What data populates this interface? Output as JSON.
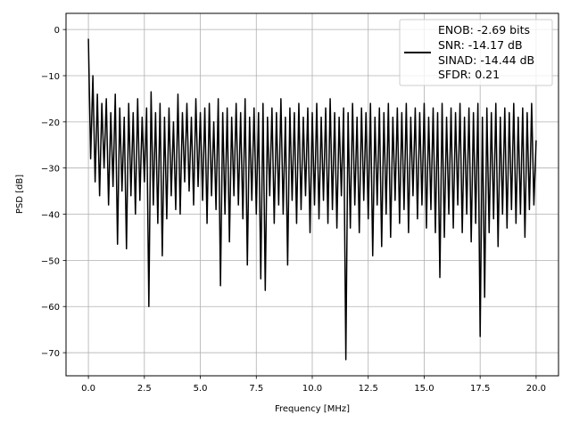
{
  "chart_data": {
    "type": "line",
    "title": "",
    "xlabel": "Frequency [MHz]",
    "ylabel": "PSD [dB]",
    "xlim": [
      -1.0,
      21.0
    ],
    "ylim": [
      -75.0,
      3.5
    ],
    "grid": true,
    "legend_placement": "top-right",
    "x_ticks": [
      0.0,
      2.5,
      5.0,
      7.5,
      10.0,
      12.5,
      15.0,
      17.5,
      20.0
    ],
    "x_tick_labels": [
      "0.0",
      "2.5",
      "5.0",
      "7.5",
      "10.0",
      "12.5",
      "15.0",
      "17.5",
      "20.0"
    ],
    "y_ticks": [
      0,
      -10,
      -20,
      -30,
      -40,
      -50,
      -60,
      -70
    ],
    "y_tick_labels": [
      "0",
      "−10",
      "−20",
      "−30",
      "−40",
      "−50",
      "−60",
      "−70"
    ],
    "series": [
      {
        "name": "PSD",
        "color": "#000000",
        "x_start": 0.0,
        "x_step": 0.1,
        "y": [
          -2,
          -28,
          -10,
          -33,
          -14,
          -36,
          -16,
          -30,
          -15,
          -38,
          -18,
          -34,
          -14,
          -46.5,
          -17,
          -35,
          -19,
          -47.5,
          -16,
          -36,
          -18,
          -40,
          -15,
          -37,
          -19,
          -33,
          -17,
          -60,
          -13.5,
          -38,
          -18,
          -42,
          -16,
          -49,
          -19,
          -41,
          -17,
          -36,
          -20,
          -39,
          -14,
          -40,
          -18,
          -33,
          -16,
          -35,
          -19,
          -38,
          -15,
          -34,
          -18,
          -37,
          -17,
          -42,
          -16,
          -36,
          -20,
          -39,
          -15,
          -55.5,
          -18,
          -40,
          -17,
          -46,
          -19,
          -36,
          -16,
          -38,
          -18,
          -41,
          -15,
          -51,
          -19,
          -37,
          -17,
          -40,
          -18,
          -54,
          -16,
          -56.5,
          -19,
          -36,
          -17,
          -42,
          -18,
          -38,
          -15,
          -40,
          -19,
          -51,
          -17,
          -37,
          -18,
          -42,
          -16,
          -39,
          -19,
          -36,
          -17,
          -44,
          -18,
          -38,
          -16,
          -41,
          -19,
          -37,
          -17,
          -42,
          -15,
          -39,
          -18,
          -43,
          -19,
          -36,
          -17,
          -71.5,
          -18,
          -43,
          -16,
          -38,
          -19,
          -44,
          -17,
          -37,
          -18,
          -41,
          -16,
          -49,
          -19,
          -38,
          -17,
          -47,
          -18,
          -40,
          -16,
          -45,
          -19,
          -37,
          -17,
          -42,
          -18,
          -39,
          -16,
          -44,
          -19,
          -36,
          -17,
          -41,
          -18,
          -38,
          -16,
          -43,
          -19,
          -39,
          -17,
          -44,
          -18,
          -53.7,
          -16,
          -45,
          -19,
          -40,
          -17,
          -43,
          -18,
          -38,
          -16,
          -44,
          -19,
          -40,
          -17,
          -46,
          -18,
          -42,
          -16,
          -66.5,
          -19,
          -58,
          -17,
          -44,
          -18,
          -41,
          -16,
          -47,
          -19,
          -40,
          -17,
          -43,
          -18,
          -39,
          -16,
          -42,
          -19,
          -40,
          -17,
          -45,
          -18,
          -39,
          -16,
          -38,
          -24
        ]
      }
    ],
    "legend": {
      "lines": [
        "ENOB: -2.69 bits",
        "SNR: -14.17 dB",
        "SINAD: -14.44 dB",
        "SFDR: 0.21"
      ]
    }
  }
}
